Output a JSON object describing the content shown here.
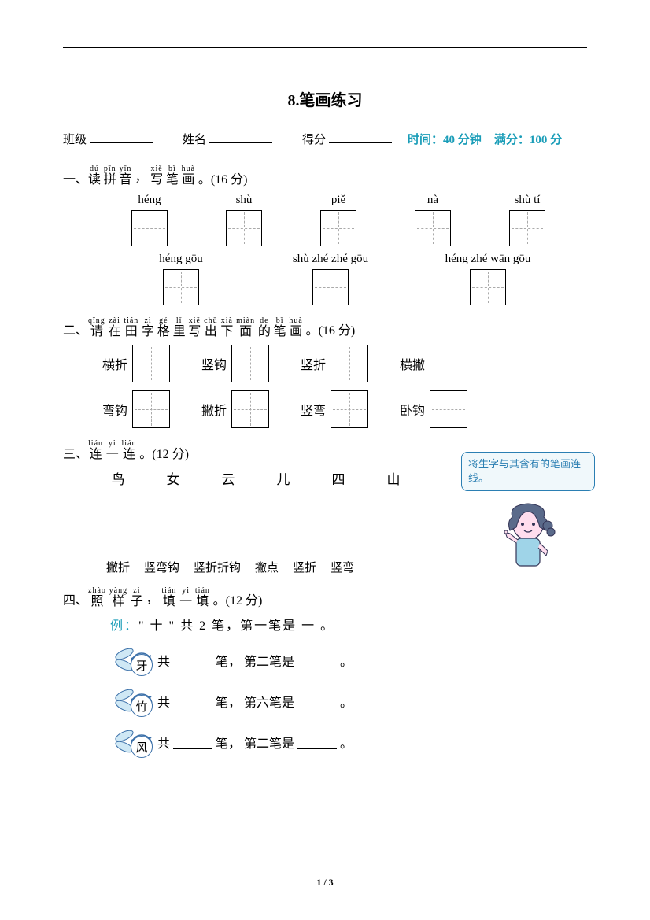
{
  "title": "8.笔画练习",
  "header": {
    "class_label": "班级",
    "name_label": "姓名",
    "score_label": "得分",
    "time_label": "时间：40 分钟",
    "full_label": "满分：100 分"
  },
  "s1": {
    "num": "一、",
    "ruby": [
      {
        "rt": "dú",
        "rb": "读"
      },
      {
        "rt": "pīn",
        "rb": "拼"
      },
      {
        "rt": "yīn",
        "rb": "音"
      },
      {
        "rt": "",
        "rb": "，"
      },
      {
        "rt": "xiě",
        "rb": "写"
      },
      {
        "rt": "bǐ",
        "rb": "笔"
      },
      {
        "rt": "huà",
        "rb": "画"
      }
    ],
    "tail": "。(16 分)",
    "row1": [
      "héng",
      "shù",
      "piě",
      "nà",
      "shù tí"
    ],
    "row2": [
      "héng gōu",
      "shù zhé zhé gōu",
      "héng zhé wān gōu"
    ]
  },
  "s2": {
    "num": "二、",
    "ruby": [
      {
        "rt": "qǐng",
        "rb": "请"
      },
      {
        "rt": "zài",
        "rb": "在"
      },
      {
        "rt": "tián",
        "rb": "田"
      },
      {
        "rt": "zì",
        "rb": "字"
      },
      {
        "rt": "gé",
        "rb": "格"
      },
      {
        "rt": "lǐ",
        "rb": "里"
      },
      {
        "rt": "xiě",
        "rb": "写"
      },
      {
        "rt": "chū",
        "rb": "出"
      },
      {
        "rt": "xià",
        "rb": "下"
      },
      {
        "rt": "miàn",
        "rb": "面"
      },
      {
        "rt": "de",
        "rb": "的"
      },
      {
        "rt": "bǐ",
        "rb": "笔"
      },
      {
        "rt": "huà",
        "rb": "画"
      }
    ],
    "tail": "。(16 分)",
    "row1": [
      "横折",
      "竖钩",
      "竖折",
      "横撇"
    ],
    "row2": [
      "弯钩",
      "撇折",
      "竖弯",
      "卧钩"
    ]
  },
  "s3": {
    "num": "三、",
    "ruby": [
      {
        "rt": "lián",
        "rb": "连"
      },
      {
        "rt": "yi",
        "rb": "一"
      },
      {
        "rt": "lián",
        "rb": "连"
      }
    ],
    "tail": "。(12 分)",
    "top": [
      "鸟",
      "女",
      "云",
      "儿",
      "四",
      "山"
    ],
    "bot": [
      "撇折",
      "竖弯钩",
      "竖折折钩",
      "撇点",
      "竖折",
      "竖弯"
    ],
    "bubble": "将生字与其含有的笔画连线。"
  },
  "s4": {
    "num": "四、",
    "ruby": [
      {
        "rt": "zhào",
        "rb": "照"
      },
      {
        "rt": "yàng",
        "rb": "样"
      },
      {
        "rt": "zi",
        "rb": "子"
      },
      {
        "rt": "",
        "rb": "，"
      },
      {
        "rt": "tián",
        "rb": "填"
      },
      {
        "rt": "yi",
        "rb": "一"
      },
      {
        "rt": "tián",
        "rb": "填"
      }
    ],
    "tail": "。(12 分)",
    "example_prefix": "例：",
    "example_body": "\" 十 \" 共  2  笔，第一笔是  一  。",
    "rows": [
      {
        "char": "牙",
        "nth": "第二笔是"
      },
      {
        "char": "竹",
        "nth": "第六笔是"
      },
      {
        "char": "风",
        "nth": "第二笔是"
      }
    ],
    "gong": "共",
    "bi": "笔，"
  },
  "footer": "1 / 3",
  "colors": {
    "teal": "#1a9db8",
    "bubble_border": "#2b7fb3"
  }
}
